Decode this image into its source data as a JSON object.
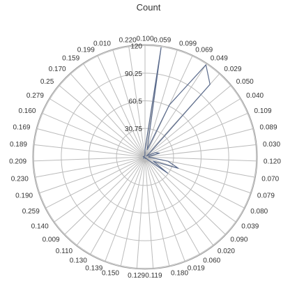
{
  "chart_data": {
    "type": "radar",
    "title": "Count",
    "categories": [
      "0.100",
      "0.059",
      "0.099",
      "0.069",
      "0.049",
      "0.029",
      "0.050",
      "0.040",
      "0.109",
      "0.089",
      "0.030",
      "0.120",
      "0.070",
      "0.079",
      "0.080",
      "0.039",
      "0.090",
      "0.020",
      "0.060",
      "0.019",
      "0.180",
      "0.119",
      "0.129",
      "0.150",
      "0.139",
      "0.130",
      "0.110",
      "0.009",
      "0.140",
      "0.259",
      "0.190",
      "0.230",
      "0.209",
      "0.189",
      "0.169",
      "0.160",
      "0.279",
      "0.25",
      "0.170",
      "0.159",
      "0.199",
      "0.010",
      "0.220"
    ],
    "series": [
      {
        "values": [
          8,
          119,
          8,
          62,
          119,
          105,
          6,
          2,
          12,
          16,
          4,
          4,
          25,
          38,
          10,
          30,
          5,
          2,
          1,
          2,
          1,
          1,
          1,
          1,
          1,
          1,
          1,
          2,
          1,
          1,
          1,
          1,
          1,
          2,
          2,
          1,
          1,
          1,
          1,
          1,
          1,
          1,
          1
        ]
      }
    ],
    "radial_ticks": [
      "30.75",
      "60.5",
      "90.25",
      "120"
    ],
    "rmax": 121,
    "grid": true,
    "colors": {
      "series": "#5b6b8c",
      "grid": "#bbbbbb",
      "text": "#333333"
    }
  }
}
